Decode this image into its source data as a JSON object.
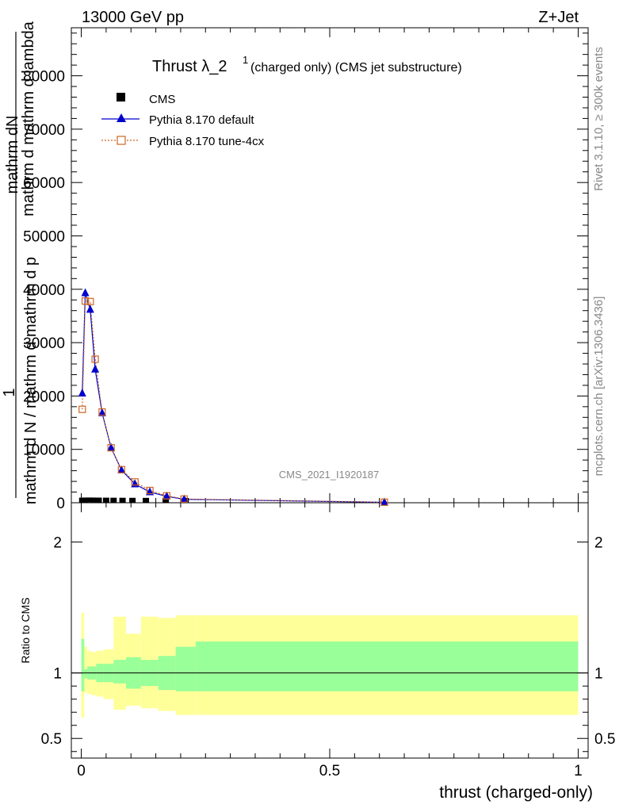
{
  "header": {
    "left": "13000 GeV pp",
    "right": "Z+Jet"
  },
  "title": {
    "main": "Thrust λ_2",
    "sup": "1",
    "sub": " (charged only) (CMS jet substructure)"
  },
  "watermark": "CMS_2021_I1920187",
  "side_labels": {
    "rivet": "Rivet 3.1.10, ≥ 300k events",
    "mcplots": "mcplots.cern.ch [arXiv:1306.3436]"
  },
  "ylabel": {
    "numerator_top": "1",
    "numerator": "mathrm dN",
    "denominator": "mathrm d N / mathrm d mathrm d p",
    "line2": "mathrm d mathrm d lambda"
  },
  "ratio_ylabel": "Ratio to CMS",
  "xlabel": "thrust (charged-only)",
  "legend": [
    {
      "label": "CMS",
      "marker": "square",
      "color": "#000000"
    },
    {
      "label": "Pythia 8.170 default",
      "marker": "triangle",
      "color": "#0000cc"
    },
    {
      "label": "Pythia 8.170 tune-4cx",
      "marker": "open-square",
      "color": "#cc6622"
    }
  ],
  "chart_data": {
    "type": "line",
    "xlabel": "thrust (charged-only)",
    "xlim": [
      -0.02,
      1.02
    ],
    "xticks": [
      0,
      0.5,
      1
    ],
    "xtick_labels": [
      "0",
      "0.5",
      "1"
    ],
    "main": {
      "ylim": [
        0,
        89000
      ],
      "yticks": [
        0,
        10000,
        20000,
        30000,
        40000,
        50000,
        60000,
        70000,
        80000
      ],
      "ytick_labels": [
        "0",
        "10000",
        "20000",
        "30000",
        "40000",
        "50000",
        "60000",
        "70000",
        "80000"
      ],
      "series": [
        {
          "name": "CMS",
          "x": [
            0.002,
            0.008,
            0.016,
            0.025,
            0.035,
            0.05,
            0.065,
            0.083,
            0.103,
            0.13,
            0.17,
            0.21
          ],
          "y": [
            60,
            80,
            90,
            80,
            70,
            60,
            50,
            40,
            30,
            20,
            15,
            10
          ]
        },
        {
          "name": "Pythia 8.170 default",
          "x": [
            0.002,
            0.008,
            0.018,
            0.028,
            0.042,
            0.06,
            0.081,
            0.108,
            0.138,
            0.172,
            0.207,
            0.61
          ],
          "y": [
            20500,
            39300,
            36200,
            25000,
            16800,
            10300,
            6100,
            3500,
            2000,
            1200,
            650,
            80
          ]
        },
        {
          "name": "Pythia 8.170 tune-4cx",
          "x": [
            0.002,
            0.008,
            0.018,
            0.028,
            0.042,
            0.06,
            0.081,
            0.108,
            0.138,
            0.172,
            0.207,
            0.61
          ],
          "y": [
            17500,
            37800,
            37700,
            26900,
            17000,
            10300,
            6200,
            3900,
            2300,
            1300,
            700,
            100
          ]
        }
      ]
    },
    "ratio": {
      "ylim": [
        0.35,
        2.3
      ],
      "yticks": [
        0.5,
        1,
        2
      ],
      "ytick_labels": [
        "0.5",
        "1",
        "2"
      ],
      "reference": 1,
      "bins": [
        0,
        0.006,
        0.012,
        0.02,
        0.03,
        0.045,
        0.065,
        0.09,
        0.12,
        0.155,
        0.19,
        0.23,
        1.0
      ],
      "inner_lo": [
        0.86,
        0.96,
        0.95,
        0.95,
        0.93,
        0.93,
        0.92,
        0.88,
        0.9,
        0.87,
        0.86,
        0.86
      ],
      "inner_hi": [
        1.26,
        1.03,
        1.05,
        1.05,
        1.07,
        1.07,
        1.1,
        1.12,
        1.1,
        1.13,
        1.2,
        1.24
      ],
      "outer_lo": [
        0.66,
        0.85,
        0.84,
        0.83,
        0.82,
        0.8,
        0.72,
        0.75,
        0.73,
        0.71,
        0.68,
        0.68
      ],
      "outer_hi": [
        1.46,
        1.2,
        1.17,
        1.16,
        1.17,
        1.18,
        1.43,
        1.3,
        1.43,
        1.42,
        1.44,
        1.44
      ]
    },
    "grid": false,
    "legend_position": "top-left"
  }
}
